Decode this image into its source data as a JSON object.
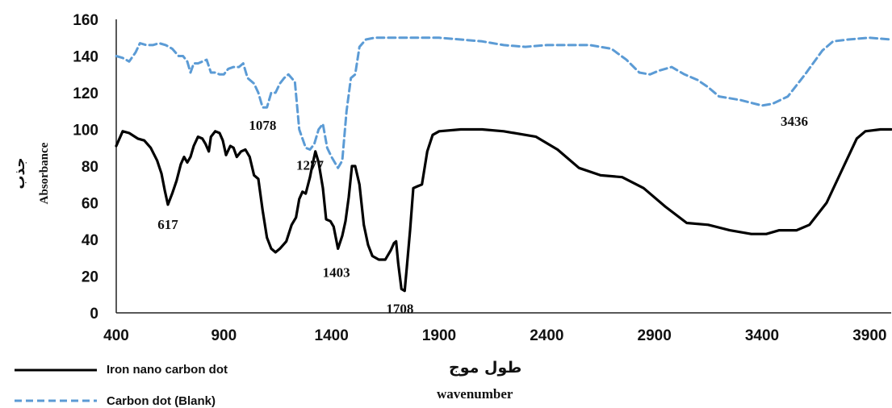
{
  "chart_data": {
    "type": "line",
    "title": "",
    "xlabel": "wavenumber",
    "xlabel_secondary": "طول موج",
    "ylabel": "Absorbance",
    "ylabel_secondary": "جذب",
    "xlim": [
      400,
      4000
    ],
    "ylim": [
      0,
      160
    ],
    "xticks": [
      400,
      900,
      1400,
      1900,
      2400,
      2900,
      3400,
      3900
    ],
    "yticks": [
      0,
      20,
      40,
      60,
      80,
      100,
      120,
      140,
      160
    ],
    "grid": false,
    "legend_position": "bottom-left",
    "series": [
      {
        "name": "Iron nano carbon dot",
        "color": "#000000",
        "style": "solid",
        "points": [
          [
            400,
            91
          ],
          [
            430,
            99
          ],
          [
            460,
            98
          ],
          [
            500,
            95
          ],
          [
            530,
            94
          ],
          [
            560,
            90
          ],
          [
            590,
            83
          ],
          [
            610,
            76
          ],
          [
            625,
            67
          ],
          [
            640,
            59
          ],
          [
            660,
            65
          ],
          [
            680,
            72
          ],
          [
            700,
            81
          ],
          [
            715,
            85
          ],
          [
            730,
            82
          ],
          [
            745,
            85
          ],
          [
            760,
            91
          ],
          [
            780,
            96
          ],
          [
            800,
            95
          ],
          [
            815,
            92
          ],
          [
            830,
            88
          ],
          [
            840,
            96
          ],
          [
            860,
            99
          ],
          [
            880,
            98
          ],
          [
            895,
            94
          ],
          [
            910,
            86
          ],
          [
            930,
            91
          ],
          [
            945,
            90
          ],
          [
            960,
            85
          ],
          [
            980,
            88
          ],
          [
            1000,
            89
          ],
          [
            1020,
            85
          ],
          [
            1040,
            75
          ],
          [
            1060,
            73
          ],
          [
            1080,
            56
          ],
          [
            1100,
            41
          ],
          [
            1120,
            35
          ],
          [
            1140,
            33
          ],
          [
            1160,
            35
          ],
          [
            1190,
            39
          ],
          [
            1215,
            48
          ],
          [
            1235,
            52
          ],
          [
            1250,
            62
          ],
          [
            1265,
            66
          ],
          [
            1280,
            65
          ],
          [
            1300,
            74
          ],
          [
            1310,
            80
          ],
          [
            1325,
            88
          ],
          [
            1340,
            82
          ],
          [
            1360,
            68
          ],
          [
            1375,
            51
          ],
          [
            1395,
            50
          ],
          [
            1410,
            47
          ],
          [
            1430,
            35
          ],
          [
            1450,
            42
          ],
          [
            1465,
            50
          ],
          [
            1480,
            63
          ],
          [
            1495,
            80
          ],
          [
            1510,
            80
          ],
          [
            1530,
            70
          ],
          [
            1550,
            48
          ],
          [
            1570,
            37
          ],
          [
            1590,
            31
          ],
          [
            1620,
            29
          ],
          [
            1650,
            29
          ],
          [
            1675,
            34
          ],
          [
            1690,
            38
          ],
          [
            1700,
            39
          ],
          [
            1710,
            27
          ],
          [
            1725,
            13
          ],
          [
            1740,
            12
          ],
          [
            1750,
            25
          ],
          [
            1765,
            45
          ],
          [
            1780,
            68
          ],
          [
            1800,
            69
          ],
          [
            1820,
            70
          ],
          [
            1845,
            88
          ],
          [
            1870,
            97
          ],
          [
            1900,
            99
          ],
          [
            2000,
            100
          ],
          [
            2100,
            100
          ],
          [
            2200,
            99
          ],
          [
            2350,
            96
          ],
          [
            2450,
            89
          ],
          [
            2550,
            79
          ],
          [
            2650,
            75
          ],
          [
            2750,
            74
          ],
          [
            2850,
            68
          ],
          [
            2950,
            58
          ],
          [
            3050,
            49
          ],
          [
            3150,
            48
          ],
          [
            3250,
            45
          ],
          [
            3350,
            43
          ],
          [
            3420,
            43
          ],
          [
            3480,
            45
          ],
          [
            3560,
            45
          ],
          [
            3620,
            48
          ],
          [
            3700,
            60
          ],
          [
            3780,
            80
          ],
          [
            3840,
            95
          ],
          [
            3880,
            99
          ],
          [
            3950,
            100
          ],
          [
            4000,
            100
          ]
        ]
      },
      {
        "name": "Carbon dot (Blank)",
        "color": "#5b9bd5",
        "style": "dashed",
        "points": [
          [
            400,
            140
          ],
          [
            430,
            139
          ],
          [
            460,
            137
          ],
          [
            490,
            142
          ],
          [
            510,
            147
          ],
          [
            540,
            146
          ],
          [
            570,
            146
          ],
          [
            600,
            147
          ],
          [
            630,
            146
          ],
          [
            660,
            144
          ],
          [
            690,
            140
          ],
          [
            710,
            140
          ],
          [
            730,
            137
          ],
          [
            745,
            131
          ],
          [
            760,
            136
          ],
          [
            780,
            136
          ],
          [
            800,
            137
          ],
          [
            820,
            138
          ],
          [
            840,
            131
          ],
          [
            860,
            131
          ],
          [
            880,
            130
          ],
          [
            900,
            130
          ],
          [
            920,
            133
          ],
          [
            945,
            134
          ],
          [
            970,
            134
          ],
          [
            990,
            136
          ],
          [
            1010,
            128
          ],
          [
            1040,
            125
          ],
          [
            1060,
            120
          ],
          [
            1080,
            112
          ],
          [
            1100,
            112
          ],
          [
            1120,
            120
          ],
          [
            1140,
            120
          ],
          [
            1160,
            125
          ],
          [
            1180,
            128
          ],
          [
            1200,
            130
          ],
          [
            1230,
            126
          ],
          [
            1250,
            100
          ],
          [
            1265,
            95
          ],
          [
            1280,
            90
          ],
          [
            1300,
            89
          ],
          [
            1320,
            92
          ],
          [
            1340,
            100
          ],
          [
            1360,
            103
          ],
          [
            1380,
            90
          ],
          [
            1400,
            85
          ],
          [
            1430,
            79
          ],
          [
            1450,
            83
          ],
          [
            1470,
            110
          ],
          [
            1490,
            128
          ],
          [
            1510,
            130
          ],
          [
            1530,
            145
          ],
          [
            1560,
            149
          ],
          [
            1600,
            150
          ],
          [
            1700,
            150
          ],
          [
            1800,
            150
          ],
          [
            1900,
            150
          ],
          [
            2000,
            149
          ],
          [
            2100,
            148
          ],
          [
            2200,
            146
          ],
          [
            2300,
            145
          ],
          [
            2400,
            146
          ],
          [
            2500,
            146
          ],
          [
            2600,
            146
          ],
          [
            2700,
            144
          ],
          [
            2770,
            138
          ],
          [
            2830,
            131
          ],
          [
            2880,
            130
          ],
          [
            2920,
            132
          ],
          [
            2980,
            134
          ],
          [
            3040,
            130
          ],
          [
            3100,
            127
          ],
          [
            3150,
            123
          ],
          [
            3200,
            118
          ],
          [
            3300,
            116
          ],
          [
            3400,
            113
          ],
          [
            3450,
            114
          ],
          [
            3520,
            118
          ],
          [
            3600,
            130
          ],
          [
            3680,
            143
          ],
          [
            3730,
            148
          ],
          [
            3800,
            149
          ],
          [
            3900,
            150
          ],
          [
            4000,
            149
          ]
        ]
      }
    ],
    "annotations": [
      {
        "text": "617",
        "x": 640,
        "y": 59
      },
      {
        "text": "1078",
        "x": 1080,
        "y": 112
      },
      {
        "text": "1277",
        "x": 1300,
        "y": 89
      },
      {
        "text": "1403",
        "x": 1430,
        "y": 35
      },
      {
        "text": "1708",
        "x": 1725,
        "y": 13
      },
      {
        "text": "3436",
        "x": 3400,
        "y": 113
      }
    ]
  }
}
